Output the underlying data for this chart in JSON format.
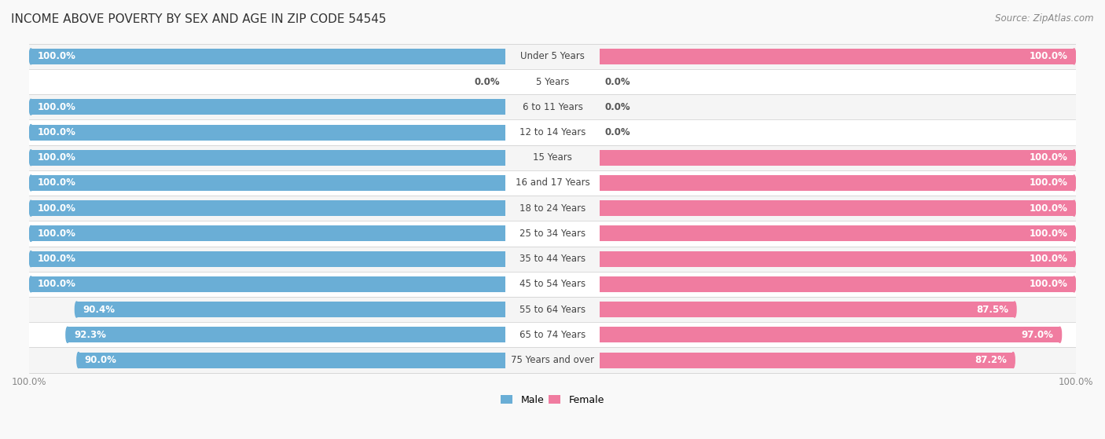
{
  "title": "INCOME ABOVE POVERTY BY SEX AND AGE IN ZIP CODE 54545",
  "source": "Source: ZipAtlas.com",
  "categories": [
    "Under 5 Years",
    "5 Years",
    "6 to 11 Years",
    "12 to 14 Years",
    "15 Years",
    "16 and 17 Years",
    "18 to 24 Years",
    "25 to 34 Years",
    "35 to 44 Years",
    "45 to 54 Years",
    "55 to 64 Years",
    "65 to 74 Years",
    "75 Years and over"
  ],
  "male": [
    100.0,
    0.0,
    100.0,
    100.0,
    100.0,
    100.0,
    100.0,
    100.0,
    100.0,
    100.0,
    90.4,
    92.3,
    90.0
  ],
  "female": [
    100.0,
    0.0,
    0.0,
    0.0,
    100.0,
    100.0,
    100.0,
    100.0,
    100.0,
    100.0,
    87.5,
    97.0,
    87.2
  ],
  "male_color": "#6aaed6",
  "female_color": "#f07ca0",
  "male_color_light": "#b8d8ed",
  "female_color_light": "#f9c0d0",
  "row_colors": [
    "#f5f5f5",
    "#ffffff"
  ],
  "bg_color": "#f9f9f9",
  "title_fontsize": 11,
  "source_fontsize": 8.5,
  "label_fontsize": 8.5,
  "bar_label_fontsize": 8.5,
  "axis_label_fontsize": 8.5,
  "bar_height": 0.62,
  "x_max": 100
}
